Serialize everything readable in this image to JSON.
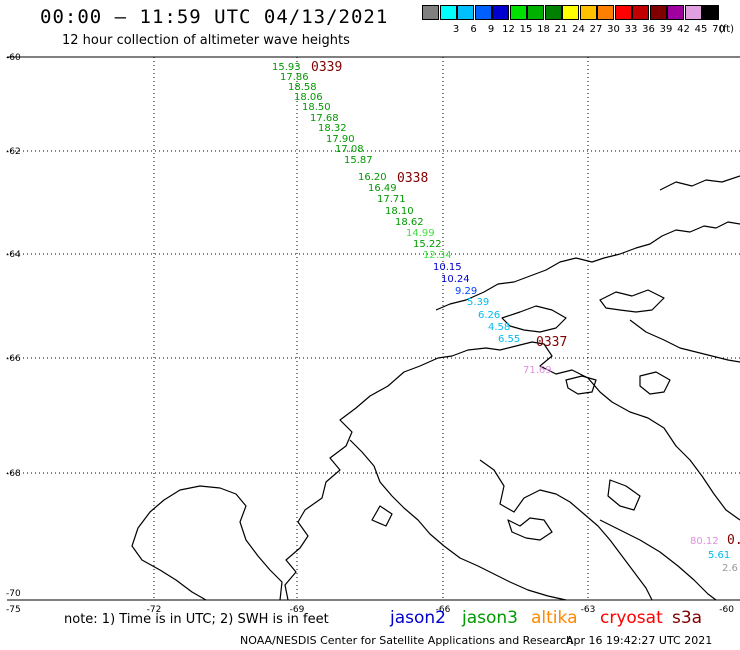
{
  "header": {
    "title": "00:00 – 11:59 UTC 04/13/2021",
    "subtitle": "12 hour collection of altimeter wave heights"
  },
  "color_scale": {
    "unit": "(ft)",
    "swatches": [
      {
        "label": "",
        "color": "#808080"
      },
      {
        "label": "3",
        "color": "#00ffff"
      },
      {
        "label": "6",
        "color": "#00c0ff"
      },
      {
        "label": "9",
        "color": "#0060ff"
      },
      {
        "label": "12",
        "color": "#0000d0"
      },
      {
        "label": "15",
        "color": "#00e000"
      },
      {
        "label": "18",
        "color": "#00b000"
      },
      {
        "label": "21",
        "color": "#008000"
      },
      {
        "label": "24",
        "color": "#ffff00"
      },
      {
        "label": "27",
        "color": "#ffc000"
      },
      {
        "label": "30",
        "color": "#ff8000"
      },
      {
        "label": "33",
        "color": "#ff0000"
      },
      {
        "label": "36",
        "color": "#c00000"
      },
      {
        "label": "39",
        "color": "#800000"
      },
      {
        "label": "42",
        "color": "#a000a0"
      },
      {
        "label": "45",
        "color": "#e0a0e0"
      },
      {
        "label": "70",
        "color": "#000000"
      }
    ]
  },
  "map": {
    "lat_labels": [
      "-60",
      "-62",
      "-64",
      "-66",
      "-68",
      "-70"
    ],
    "lon_labels": [
      "-75",
      "-72",
      "-69",
      "-66",
      "-63",
      "-60"
    ],
    "pass_times": [
      {
        "label": "0339",
        "color": "#800000"
      },
      {
        "label": "0338",
        "color": "#800000"
      },
      {
        "label": "0337",
        "color": "#800000"
      },
      {
        "label": "0.",
        "color": "#800000"
      }
    ],
    "readings": [
      {
        "value": "15.93",
        "color": "#009900"
      },
      {
        "value": "17.86",
        "color": "#009900"
      },
      {
        "value": "18.58",
        "color": "#009900"
      },
      {
        "value": "18.06",
        "color": "#009900"
      },
      {
        "value": "18.50",
        "color": "#009900"
      },
      {
        "value": "17.68",
        "color": "#009900"
      },
      {
        "value": "18.32",
        "color": "#009900"
      },
      {
        "value": "17.90",
        "color": "#009900"
      },
      {
        "value": "17.08",
        "color": "#009900"
      },
      {
        "value": "15.87",
        "color": "#009900"
      },
      {
        "value": "16.20",
        "color": "#009900"
      },
      {
        "value": "16.49",
        "color": "#009900"
      },
      {
        "value": "17.71",
        "color": "#009900"
      },
      {
        "value": "18.10",
        "color": "#009900"
      },
      {
        "value": "18.62",
        "color": "#009900"
      },
      {
        "value": "14.99",
        "color": "#44dd44"
      },
      {
        "value": "15.22",
        "color": "#009900"
      },
      {
        "value": "12.34",
        "color": "#44dd44"
      },
      {
        "value": "10.15",
        "color": "#0000cc"
      },
      {
        "value": "10.24",
        "color": "#0000cc"
      },
      {
        "value": "9.29",
        "color": "#0044ff"
      },
      {
        "value": "5.39",
        "color": "#00bbee"
      },
      {
        "value": "6.26",
        "color": "#00bbee"
      },
      {
        "value": "4.58",
        "color": "#00bbee"
      },
      {
        "value": "6.55",
        "color": "#00bbee"
      },
      {
        "value": "71.69",
        "color": "#e090e0"
      },
      {
        "value": "80.12",
        "color": "#e090e0"
      },
      {
        "value": "5.61",
        "color": "#00bbee"
      },
      {
        "value": "2.6",
        "color": "#999999"
      }
    ]
  },
  "footer": {
    "note": "note: 1) Time is in UTC; 2) SWH is in feet",
    "satellites": [
      {
        "name": "jason2",
        "color": "#0000cc"
      },
      {
        "name": "jason3",
        "color": "#009900"
      },
      {
        "name": "altika",
        "color": "#ff8800"
      },
      {
        "name": "cryosat",
        "color": "#ff0000"
      },
      {
        "name": "s3a",
        "color": "#800000"
      }
    ],
    "credit": "NOAA/NESDIS Center for Satellite Applications and Research",
    "timestamp": "Apr 16 19:42:27 UTC 2021"
  }
}
